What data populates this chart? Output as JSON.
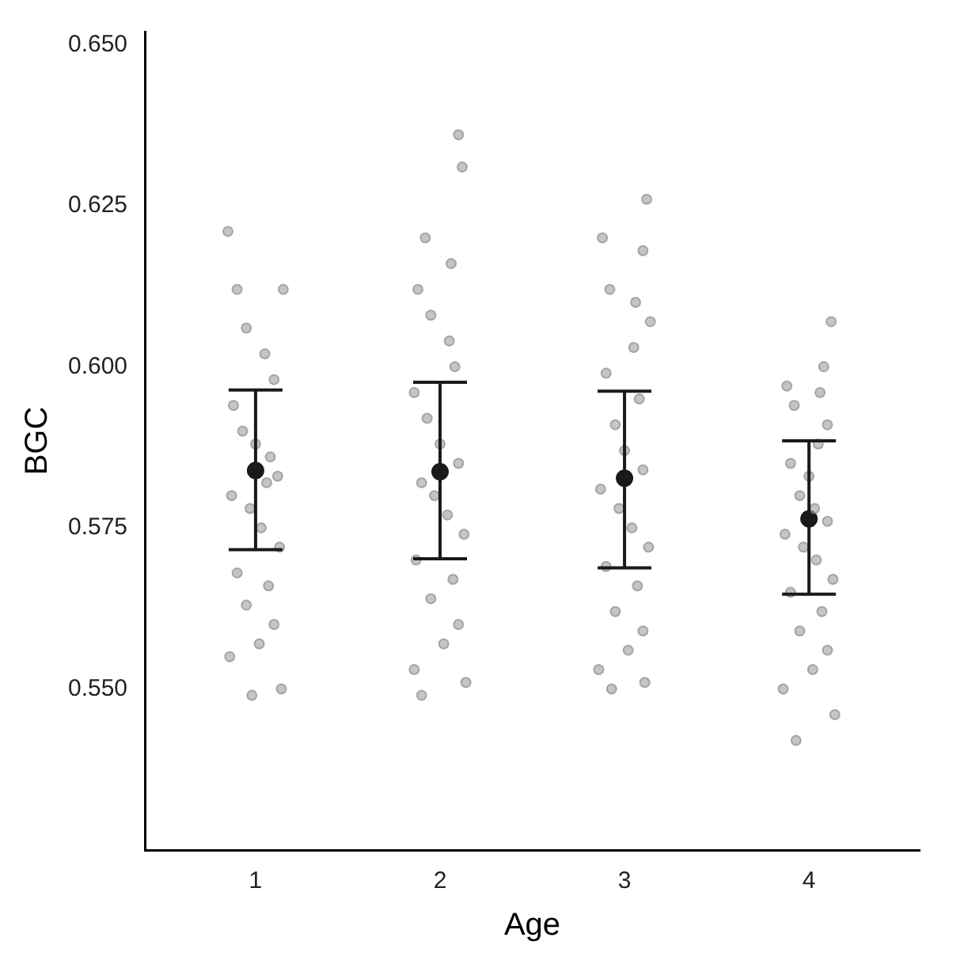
{
  "chart_data": {
    "type": "scatter",
    "xlabel": "Age",
    "ylabel": "BGC",
    "xlim": [
      0.4,
      4.6
    ],
    "xticks": [
      1,
      2,
      3,
      4
    ],
    "ylim": [
      0.525,
      0.652
    ],
    "yticks": [
      {
        "value": 0.55,
        "label": "0.550"
      },
      {
        "value": 0.575,
        "label": "0.575"
      },
      {
        "value": 0.6,
        "label": "0.600"
      },
      {
        "value": 0.625,
        "label": "0.625"
      },
      {
        "value": 0.65,
        "label": "0.650"
      }
    ],
    "grid": false,
    "legend": false,
    "marker": "circle",
    "series": [
      {
        "type": "scatter",
        "color": "#8c8c8c",
        "x": [
          0.85,
          0.9,
          0.95,
          1.05,
          1.1,
          1.15,
          0.88,
          0.93,
          1.0,
          1.08,
          1.12,
          0.87,
          0.97,
          1.03,
          1.13,
          0.9,
          1.07,
          0.95,
          1.1,
          1.02,
          0.86,
          1.14,
          0.98,
          1.06
        ],
        "values": [
          0.621,
          0.612,
          0.606,
          0.602,
          0.598,
          0.612,
          0.594,
          0.59,
          0.588,
          0.586,
          0.583,
          0.58,
          0.578,
          0.575,
          0.572,
          0.568,
          0.566,
          0.563,
          0.56,
          0.557,
          0.555,
          0.55,
          0.549,
          0.582
        ]
      },
      {
        "type": "scatter",
        "color": "#8c8c8c",
        "x": [
          2.1,
          2.12,
          1.92,
          1.88,
          1.95,
          2.05,
          2.08,
          1.86,
          1.93,
          2.0,
          2.1,
          1.9,
          1.97,
          2.04,
          2.13,
          1.87,
          2.07,
          1.95,
          2.1,
          2.02,
          1.86,
          2.14,
          1.9,
          2.06
        ],
        "values": [
          0.636,
          0.631,
          0.62,
          0.612,
          0.608,
          0.604,
          0.6,
          0.596,
          0.592,
          0.588,
          0.585,
          0.582,
          0.58,
          0.577,
          0.574,
          0.57,
          0.567,
          0.564,
          0.56,
          0.557,
          0.553,
          0.551,
          0.549,
          0.616
        ]
      },
      {
        "type": "scatter",
        "color": "#8c8c8c",
        "x": [
          3.12,
          3.1,
          2.88,
          2.92,
          3.14,
          3.05,
          2.9,
          3.08,
          2.95,
          3.0,
          3.1,
          2.87,
          2.97,
          3.04,
          3.13,
          2.9,
          3.07,
          2.95,
          3.1,
          3.02,
          2.86,
          3.11,
          2.93,
          3.06
        ],
        "values": [
          0.626,
          0.618,
          0.62,
          0.612,
          0.607,
          0.603,
          0.599,
          0.595,
          0.591,
          0.587,
          0.584,
          0.581,
          0.578,
          0.575,
          0.572,
          0.569,
          0.566,
          0.562,
          0.559,
          0.556,
          0.553,
          0.551,
          0.55,
          0.61
        ]
      },
      {
        "type": "scatter",
        "color": "#8c8c8c",
        "x": [
          4.12,
          4.08,
          3.88,
          3.92,
          4.1,
          4.05,
          3.9,
          4.0,
          3.95,
          4.03,
          4.1,
          3.87,
          3.97,
          4.04,
          4.13,
          3.9,
          4.07,
          3.95,
          4.1,
          4.02,
          3.86,
          4.14,
          3.93,
          4.06
        ],
        "values": [
          0.607,
          0.6,
          0.597,
          0.594,
          0.591,
          0.588,
          0.585,
          0.583,
          0.58,
          0.578,
          0.576,
          0.574,
          0.572,
          0.57,
          0.567,
          0.565,
          0.562,
          0.559,
          0.556,
          0.553,
          0.55,
          0.546,
          0.542,
          0.596
        ]
      },
      {
        "type": "scatter",
        "color": "#1a1a1a",
        "x": [
          1,
          2,
          3,
          4
        ],
        "values": [
          0.5839,
          0.5837,
          0.5827,
          0.5764
        ],
        "errors": [
          [
            0.5716,
            0.5964
          ],
          [
            0.5702,
            0.5976
          ],
          [
            0.5688,
            0.5962
          ],
          [
            0.5647,
            0.5885
          ]
        ]
      }
    ]
  }
}
